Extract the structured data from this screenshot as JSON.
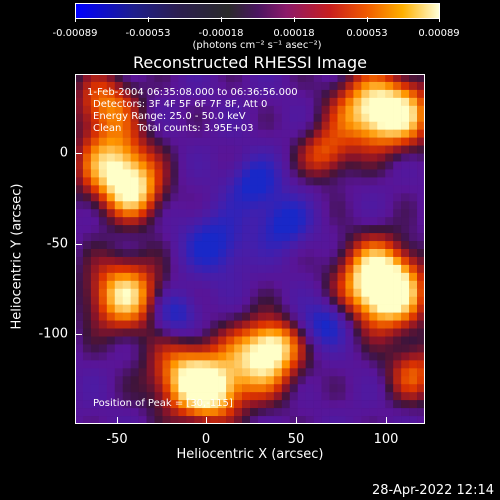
{
  "colorbar": {
    "ticks": [
      "-0.00089",
      "-0.00053",
      "-0.00018",
      "0.00018",
      "0.00053",
      "0.00089"
    ],
    "unit_label": "(photons cm⁻² s⁻¹ asec⁻²)"
  },
  "chart_data": {
    "type": "heatmap",
    "title": "Reconstructed RHESSI Image",
    "xlabel": "Heliocentric X (arcsec)",
    "ylabel": "Heliocentric Y (arcsec)",
    "xlim": [
      -72,
      120
    ],
    "ylim": [
      -150,
      40
    ],
    "x_ticks": [
      -50,
      0,
      50,
      100
    ],
    "y_ticks": [
      0,
      -50,
      -100
    ],
    "color_range": [
      -0.00089,
      0.00089
    ],
    "annotations": {
      "time": "1-Feb-2004 06:35:08.000 to 06:36:56.000",
      "detectors": "Detectors: 3F 4F 5F 6F 7F 8F, Att 0",
      "energy": "Energy Range: 25.0 - 50.0 keV",
      "method": "Clean     Total counts: 3.95E+03",
      "peak": "Position of Peak = [30,-115]"
    },
    "bright_sources": [
      {
        "x": 30,
        "y": -115
      },
      {
        "x": 100,
        "y": -80
      },
      {
        "x": -45,
        "y": -80
      },
      {
        "x": -50,
        "y": -10
      },
      {
        "x": 90,
        "y": 20
      },
      {
        "x": -10,
        "y": -125
      }
    ]
  },
  "footer": {
    "timestamp": "28-Apr-2022 12:14"
  }
}
